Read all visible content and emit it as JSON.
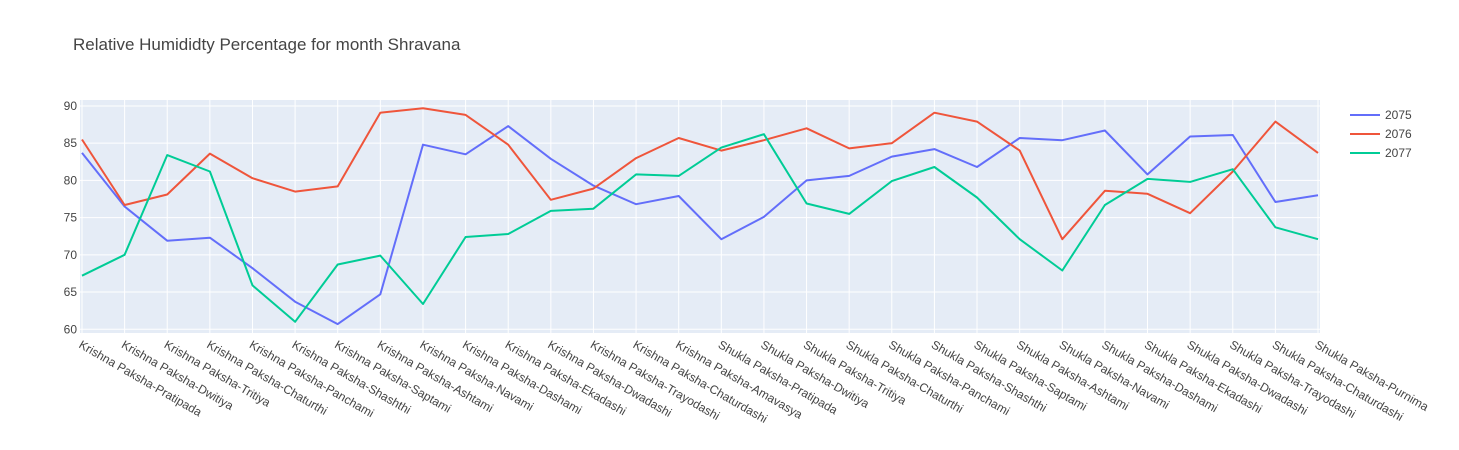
{
  "chart_data": {
    "type": "line",
    "title": "Relative Humididty Percentage for month Shravana",
    "xlabel": "",
    "ylabel": "",
    "ylim": [
      59.5,
      90.8
    ],
    "yticks": [
      60,
      65,
      70,
      75,
      80,
      85,
      90
    ],
    "grid": true,
    "legend_position": "top-right",
    "categories": [
      "Krishna Paksha-Pratipada",
      "Krishna Paksha-Dwitiya",
      "Krishna Paksha-Tritiya",
      "Krishna Paksha-Chaturthi",
      "Krishna Paksha-Panchami",
      "Krishna Paksha-Shashthi",
      "Krishna Paksha-Saptami",
      "Krishna Paksha-Ashtami",
      "Krishna Paksha-Navami",
      "Krishna Paksha-Dashami",
      "Krishna Paksha-Ekadashi",
      "Krishna Paksha-Dwadashi",
      "Krishna Paksha-Trayodashi",
      "Krishna Paksha-Chaturdashi",
      "Krishna Paksha-Amavasya",
      "Shukla Paksha-Pratipada",
      "Shukla Paksha-Dwitiya",
      "Shukla Paksha-Tritiya",
      "Shukla Paksha-Chaturthi",
      "Shukla Paksha-Panchami",
      "Shukla Paksha-Shashthi",
      "Shukla Paksha-Saptami",
      "Shukla Paksha-Ashtami",
      "Shukla Paksha-Navami",
      "Shukla Paksha-Dashami",
      "Shukla Paksha-Ekadashi",
      "Shukla Paksha-Dwadashi",
      "Shukla Paksha-Trayodashi",
      "Shukla Paksha-Chaturdashi",
      "Shukla Paksha-Purnima"
    ],
    "series": [
      {
        "name": "2075",
        "color": "#636efa",
        "values": [
          83.7,
          76.5,
          71.9,
          72.3,
          68.2,
          63.7,
          60.7,
          64.7,
          84.8,
          83.5,
          87.3,
          82.9,
          79.3,
          76.8,
          77.9,
          72.1,
          75.1,
          80.0,
          80.6,
          83.2,
          84.2,
          81.8,
          85.7,
          85.4,
          86.7,
          80.8,
          85.9,
          86.1,
          77.1,
          78.0
        ]
      },
      {
        "name": "2076",
        "color": "#ef553b",
        "values": [
          85.5,
          76.7,
          78.1,
          83.6,
          80.3,
          78.5,
          79.2,
          89.1,
          89.7,
          88.8,
          84.8,
          77.4,
          78.9,
          83.0,
          85.7,
          84.0,
          85.4,
          87.0,
          84.3,
          85.0,
          89.1,
          87.9,
          84.0,
          72.1,
          78.6,
          78.2,
          75.6,
          81.2,
          87.9,
          83.7
        ]
      },
      {
        "name": "2077",
        "color": "#00cc96",
        "values": [
          67.2,
          70.0,
          83.4,
          81.2,
          65.9,
          61.0,
          68.7,
          69.9,
          63.4,
          72.4,
          72.8,
          75.9,
          76.2,
          80.8,
          80.6,
          84.4,
          86.2,
          76.9,
          75.5,
          79.9,
          81.8,
          77.7,
          72.1,
          67.9,
          76.7,
          80.2,
          79.8,
          81.5,
          73.7,
          72.1
        ]
      }
    ]
  }
}
